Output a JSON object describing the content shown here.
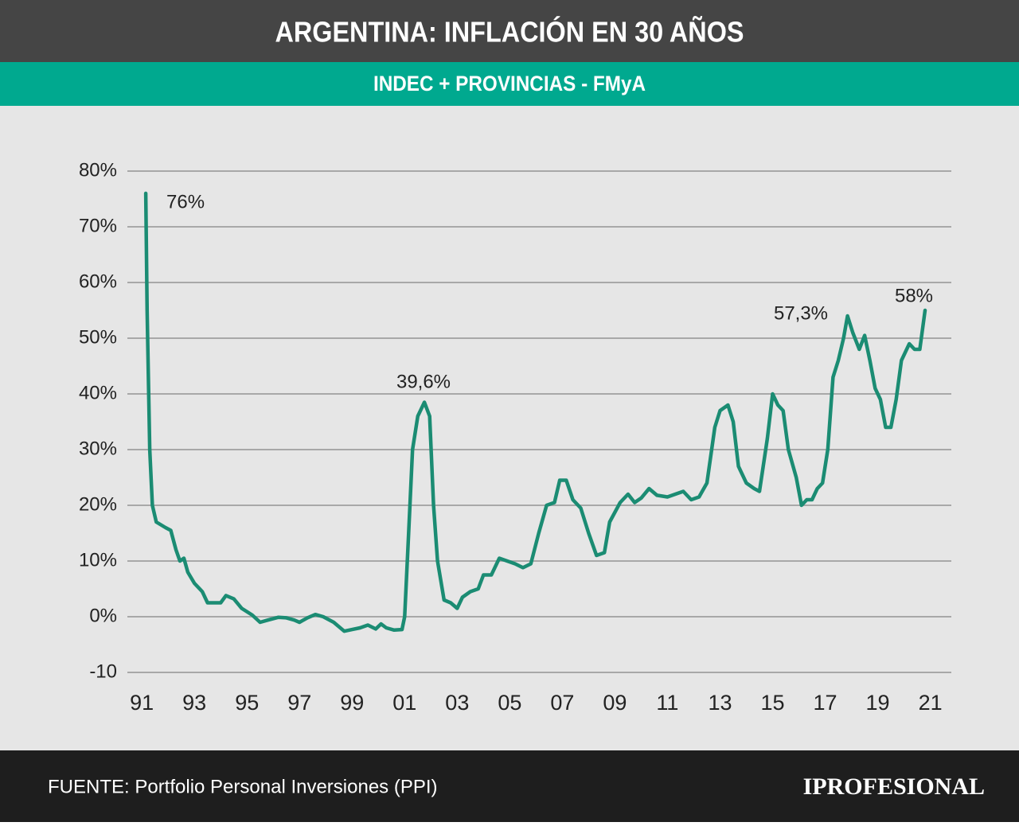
{
  "chart_data": {
    "type": "line",
    "title": "ARGENTINA: INFLACIÓN EN 30 AÑOS",
    "subtitle": "INDEC + PROVINCIAS - FMyA",
    "annotations": [
      "76%",
      "39,6%",
      "57,3%",
      "58%"
    ],
    "color": "#1b8c73",
    "grid": true,
    "xlim": [
      1990.45,
      2021.8
    ],
    "ylim": [
      -10,
      80
    ],
    "yticks": [
      {
        "value": 80,
        "label": "80%"
      },
      {
        "value": 70,
        "label": "70%"
      },
      {
        "value": 60,
        "label": "60%"
      },
      {
        "value": 50,
        "label": "50%"
      },
      {
        "value": 40,
        "label": "40%"
      },
      {
        "value": 30,
        "label": "30%"
      },
      {
        "value": 20,
        "label": "20%"
      },
      {
        "value": 10,
        "label": "10%"
      },
      {
        "value": 0,
        "label": "0%"
      },
      -10
    ],
    "xticks": [
      {
        "value": 1991,
        "label": "91"
      },
      {
        "value": 1993,
        "label": "93"
      },
      {
        "value": 1995,
        "label": "95"
      },
      {
        "value": 1997,
        "label": "97"
      },
      {
        "value": 1999,
        "label": "99"
      },
      {
        "value": 2001,
        "label": "01"
      },
      {
        "value": 2003,
        "label": "03"
      },
      {
        "value": 2005,
        "label": "05"
      },
      {
        "value": 2007,
        "label": "07"
      },
      {
        "value": 2009,
        "label": "09"
      },
      {
        "value": 2011,
        "label": "11"
      },
      {
        "value": 2013,
        "label": "13"
      },
      {
        "value": 2015,
        "label": "15"
      },
      {
        "value": 2017,
        "label": "17"
      },
      {
        "value": 2019,
        "label": "19"
      },
      {
        "value": 2021,
        "label": "21"
      }
    ],
    "x": [
      1991.15,
      1991.2,
      1991.3,
      1991.4,
      1991.55,
      1991.9,
      1992.1,
      1992.3,
      1992.45,
      1992.6,
      1992.75,
      1993.0,
      1993.3,
      1993.5,
      1993.8,
      1994.0,
      1994.2,
      1994.5,
      1994.8,
      1995.2,
      1995.5,
      1995.8,
      1996.2,
      1996.5,
      1996.8,
      1997.0,
      1997.3,
      1997.6,
      1997.9,
      1998.3,
      1998.7,
      1999.0,
      1999.3,
      1999.6,
      1999.9,
      2000.1,
      2000.3,
      2000.6,
      2000.9,
      2001.0,
      2001.15,
      2001.3,
      2001.5,
      2001.75,
      2001.95,
      2002.1,
      2002.25,
      2002.5,
      2002.75,
      2003.0,
      2003.2,
      2003.5,
      2003.8,
      2004.0,
      2004.3,
      2004.6,
      2004.9,
      2005.2,
      2005.5,
      2005.8,
      2006.1,
      2006.4,
      2006.7,
      2006.9,
      2007.15,
      2007.4,
      2007.7,
      2008.0,
      2008.3,
      2008.6,
      2008.8,
      2009.2,
      2009.5,
      2009.75,
      2010.0,
      2010.3,
      2010.6,
      2011.0,
      2011.3,
      2011.6,
      2011.9,
      2012.2,
      2012.5,
      2012.8,
      2013.0,
      2013.3,
      2013.5,
      2013.7,
      2014.0,
      2014.3,
      2014.5,
      2014.8,
      2015.0,
      2015.2,
      2015.4,
      2015.6,
      2015.9,
      2016.1,
      2016.3,
      2016.5,
      2016.7,
      2016.9,
      2017.1,
      2017.3,
      2017.5,
      2017.7,
      2017.85,
      2018.05,
      2018.3,
      2018.5,
      2018.7,
      2018.9,
      2019.1,
      2019.3,
      2019.5,
      2019.7,
      2019.9,
      2020.2,
      2020.4,
      2020.6,
      2020.8
    ],
    "values": [
      76,
      55,
      30,
      20,
      17,
      16,
      15.5,
      12,
      10,
      10.5,
      8,
      6,
      4.5,
      2.5,
      2.5,
      2.5,
      3.8,
      3.2,
      1.5,
      0.3,
      -1,
      -0.6,
      -0.1,
      -0.2,
      -0.6,
      -1,
      -0.2,
      0.4,
      0,
      -1,
      -2.6,
      -2.3,
      -2,
      -1.5,
      -2.2,
      -1.3,
      -2,
      -2.4,
      -2.3,
      0,
      15,
      30,
      36,
      38.5,
      36,
      20,
      10,
      3,
      2.5,
      1.5,
      3.5,
      4.5,
      5,
      7.5,
      7.5,
      10.5,
      10,
      9.5,
      8.8,
      9.5,
      15,
      20,
      20.5,
      24.5,
      24.5,
      21,
      19.5,
      15,
      11,
      11.5,
      17,
      20.5,
      22,
      20.5,
      21.3,
      23,
      21.8,
      21.5,
      22,
      22.5,
      21,
      21.5,
      24,
      34,
      37,
      38,
      35,
      27,
      24,
      23,
      22.5,
      32,
      40,
      38,
      37,
      30,
      25,
      20,
      21,
      21,
      23,
      24,
      30,
      43,
      46,
      50,
      54,
      51,
      48,
      50.5,
      46,
      41,
      39,
      34,
      34,
      39,
      46,
      49,
      48,
      48,
      55
    ]
  },
  "source": "FUENTE: Portfolio Personal Inversiones (PPI)",
  "logo": "IPROFESIONAL"
}
